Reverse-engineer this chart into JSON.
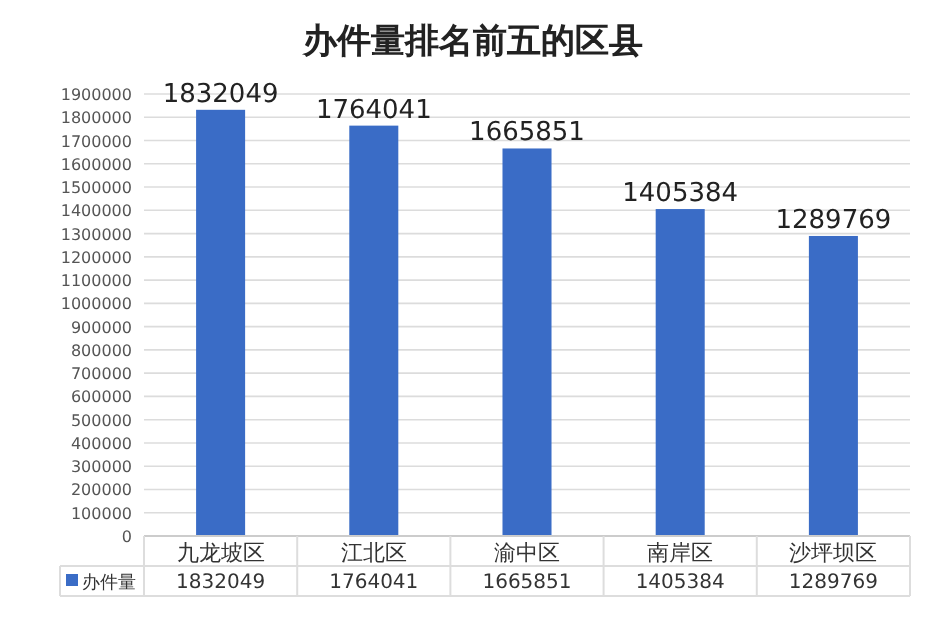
{
  "chart_data": {
    "type": "bar",
    "title": "办件量排名前五的区县",
    "categories": [
      "九龙坡区",
      "江北区",
      "渝中区",
      "南岸区",
      "沙坪坝区"
    ],
    "series": [
      {
        "name": "办件量",
        "color": "#3a6cc6",
        "values": [
          1832049,
          1764041,
          1665851,
          1405384,
          1289769
        ],
        "value_labels": [
          "1832049",
          "1764041",
          "1665851",
          "1405384",
          "1289769"
        ]
      }
    ],
    "ylim": [
      0,
      1900000
    ],
    "yticks": [
      0,
      100000,
      200000,
      300000,
      400000,
      500000,
      600000,
      700000,
      800000,
      900000,
      1000000,
      1100000,
      1200000,
      1300000,
      1400000,
      1500000,
      1600000,
      1700000,
      1800000,
      1900000
    ],
    "grid": "y",
    "legend": "bottom left",
    "annotations": [
      "1832049",
      "1764041",
      "1665851",
      "1405384",
      "1289769"
    ]
  }
}
